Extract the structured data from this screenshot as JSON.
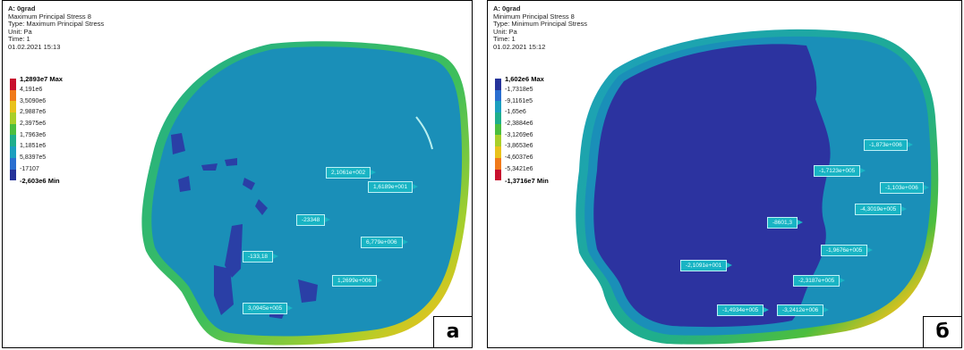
{
  "panels": {
    "a": {
      "header": {
        "title": "A: 0grad",
        "result": "Maximum Principal Stress 8",
        "type": "Type: Maximum Principal Stress",
        "unit": "Unit: Pa",
        "time": "Time: 1",
        "date": "01.02.2021 15:13"
      },
      "legend": {
        "labels": [
          "1,2893e7 Max",
          "4,191e6",
          "3,5090e6",
          "2,9887e6",
          "2,3975e6",
          "1,7963e6",
          "1,1851e6",
          "5,8397e5",
          "-17107",
          "-2,603e6 Min"
        ],
        "colors": [
          "#c8102e",
          "#f07a1a",
          "#e9c21c",
          "#a9cf2a",
          "#4cbe3e",
          "#1fae8c",
          "#1c9fbf",
          "#2a6fd0",
          "#25339a"
        ]
      },
      "probes": [
        "2,1061e+002",
        "1,6189e+001",
        "-23348",
        "6,779e+006",
        "-133,18",
        "1,2699e+006",
        "3,0945e+005"
      ],
      "letter": "а"
    },
    "b": {
      "header": {
        "title": "A: 0grad",
        "result": "Minimum Principal Stress 8",
        "type": "Type: Minimum Principal Stress",
        "unit": "Unit: Pa",
        "time": "Time: 1",
        "date": "01.02.2021 15:12"
      },
      "legend": {
        "labels": [
          "1,602e6 Max",
          "-1,7318e5",
          "-9,1161e5",
          "-1,65e6",
          "-2,3884e6",
          "-3,1269e6",
          "-3,8653e6",
          "-4,6037e6",
          "-5,3421e6",
          "-1,3716e7 Min"
        ],
        "colors": [
          "#25339a",
          "#2a6fd0",
          "#1c9fbf",
          "#1fae8c",
          "#4cbe3e",
          "#a9cf2a",
          "#e9c21c",
          "#f07a1a",
          "#c8102e"
        ]
      },
      "probes": [
        "-1,873e+006",
        "-1,7123e+005",
        "-1,103e+006",
        "-4,3019e+005",
        "-8601,3",
        "-1,9676e+005",
        "-2,1091e+001",
        "-2,3187e+005",
        "-1,4934e+005",
        "-3,2412e+006"
      ],
      "letter": "б"
    }
  }
}
